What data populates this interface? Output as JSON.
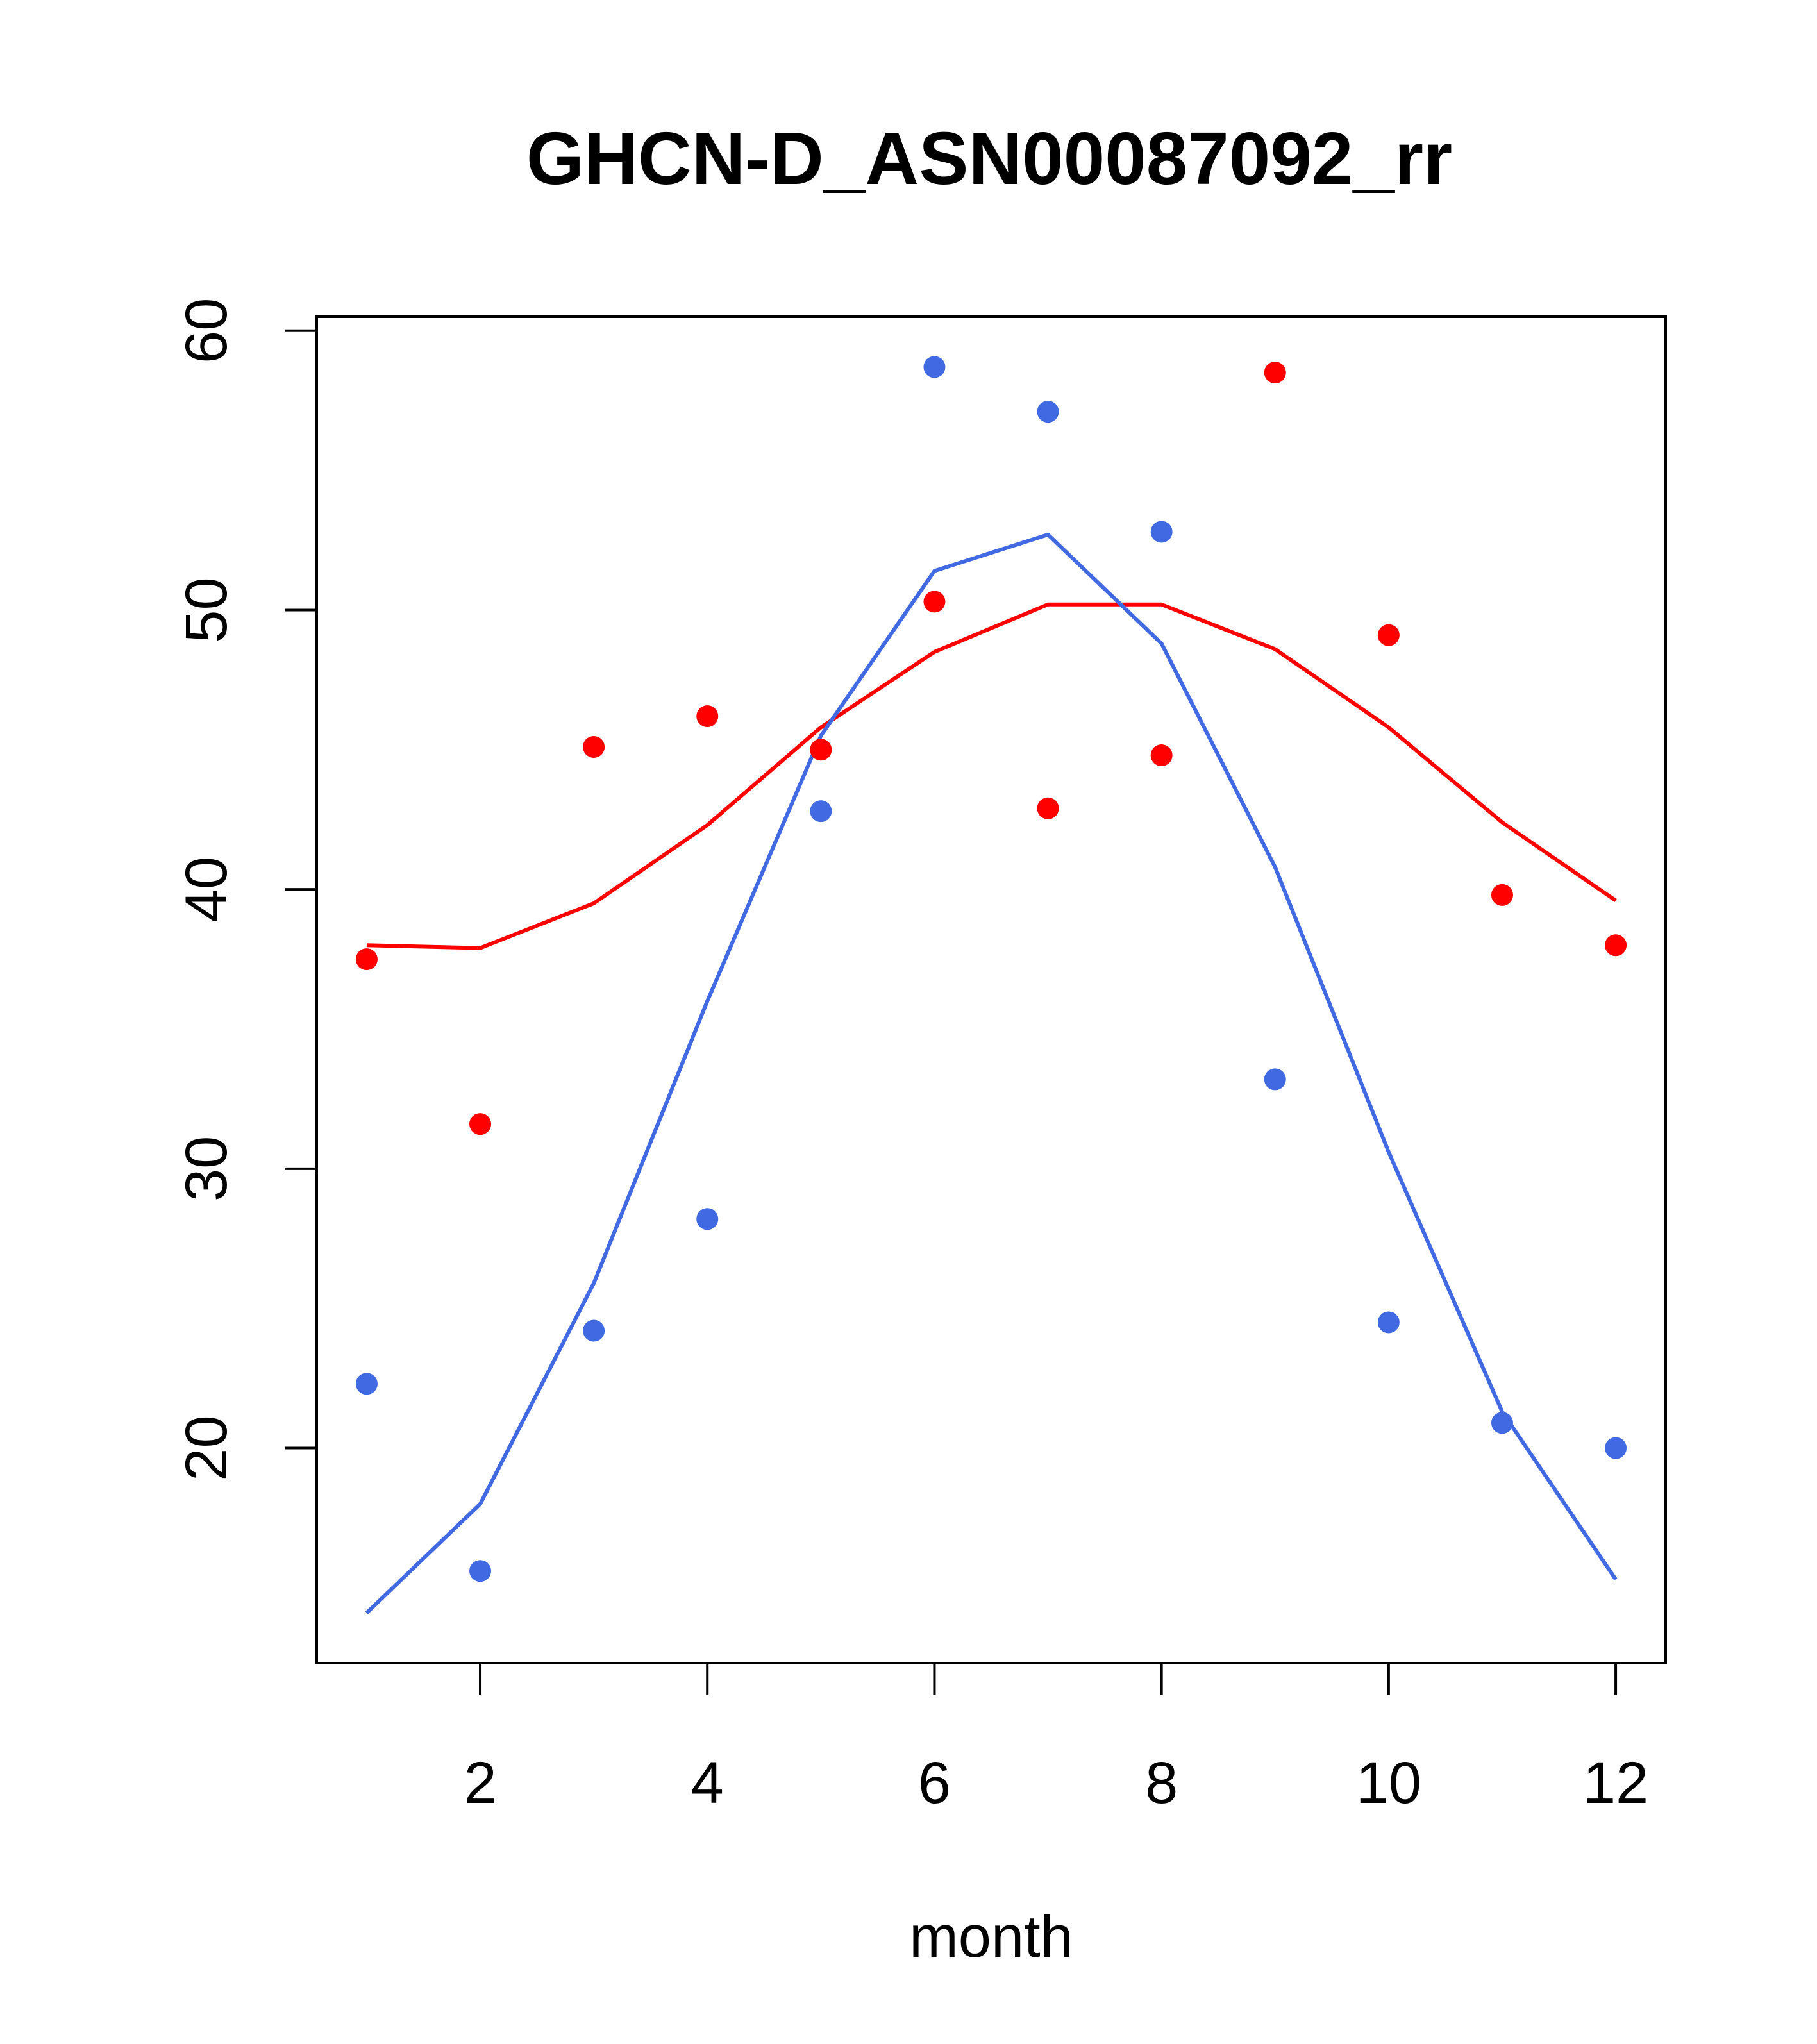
{
  "chart_data": {
    "type": "scatter",
    "title": "GHCN-D_ASN00087092_rr",
    "xlabel": "month",
    "ylabel": "",
    "xlim": [
      0.56,
      12.44
    ],
    "ylim": [
      12.3,
      60.5
    ],
    "xticks": [
      2,
      4,
      6,
      8,
      10,
      12
    ],
    "yticks": [
      20,
      30,
      40,
      50,
      60
    ],
    "x": [
      1,
      2,
      3,
      4,
      5,
      6,
      7,
      8,
      9,
      10,
      11,
      12
    ],
    "grid": false,
    "series": [
      {
        "name": "red points",
        "kind": "points",
        "color": "#ff0000",
        "values": [
          37.5,
          31.6,
          45.1,
          46.2,
          45.0,
          50.3,
          42.9,
          44.8,
          58.5,
          49.1,
          39.8,
          38.0
        ]
      },
      {
        "name": "red curve",
        "kind": "line",
        "color": "#ff0000",
        "values": [
          38.0,
          37.9,
          39.5,
          42.3,
          45.8,
          48.5,
          50.2,
          50.2,
          48.6,
          45.8,
          42.4,
          39.6
        ]
      },
      {
        "name": "blue points",
        "kind": "points",
        "color": "#4169e1",
        "values": [
          22.3,
          15.6,
          24.2,
          28.2,
          42.8,
          58.7,
          57.1,
          52.8,
          33.2,
          24.5,
          20.9,
          20.0
        ]
      },
      {
        "name": "blue curve",
        "kind": "line",
        "color": "#4169e1",
        "values": [
          14.1,
          18.0,
          25.9,
          36.0,
          45.5,
          51.4,
          52.7,
          48.8,
          40.8,
          30.6,
          21.3,
          15.3
        ]
      }
    ]
  }
}
